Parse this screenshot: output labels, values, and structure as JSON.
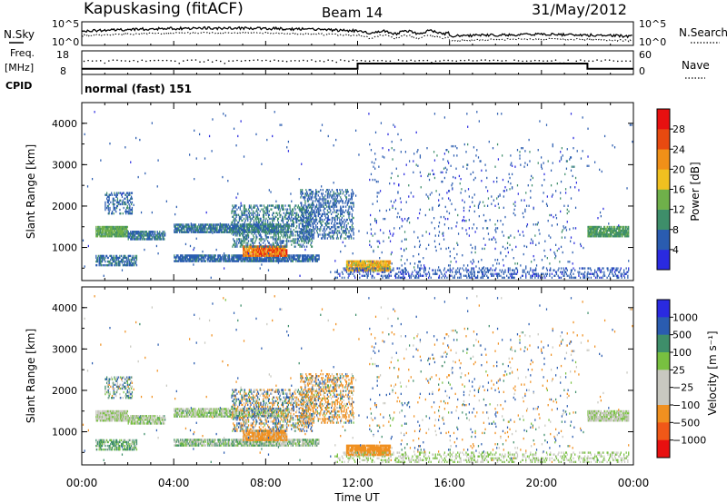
{
  "header": {
    "station": "Kapuskasing (fitACF)",
    "beam": "Beam 14",
    "date": "31/May/2012"
  },
  "top_panels": {
    "nsky_label": "N.Sky",
    "nsky_ticks": [
      "10^5",
      "10^0"
    ],
    "nsearch_label": "N.Search",
    "nsearch_ticks": [
      "10^5",
      "10^0"
    ],
    "freq_label_1": "Freq.",
    "freq_label_2": "[MHz]",
    "freq_ticks": [
      "18",
      "8"
    ],
    "nave_label": "Nave",
    "nave_ticks": [
      "60",
      "0"
    ],
    "cpid_label": "CPID",
    "cpid_text": "normal (fast) 151"
  },
  "colors": {
    "power": [
      "#2a2ae0",
      "#2a5cb0",
      "#3e8e6a",
      "#6fb04a",
      "#f0c020",
      "#f09018",
      "#e84a10",
      "#e81010"
    ],
    "velocity": [
      "#e81010",
      "#f05818",
      "#f09020",
      "#c8c8c0",
      "#c8c8c0",
      "#78c040",
      "#3e8e6a",
      "#2a5cb0",
      "#2a2ae0"
    ]
  },
  "chart_data": [
    {
      "type": "heatmap",
      "title": "Power",
      "ylabel": "Slant Range [km]",
      "xlabel": "Time UT",
      "xticks": [
        "00:00",
        "04:00",
        "08:00",
        "12:00",
        "16:00",
        "20:00",
        "00:00"
      ],
      "xlim": [
        0,
        24
      ],
      "yticks": [
        "1000",
        "2000",
        "3000",
        "4000"
      ],
      "ylim": [
        200,
        4500
      ],
      "colorbar_label": "Power [dB]",
      "colorbar_ticks": [
        "4",
        "8",
        "12",
        "16",
        "20",
        "24",
        "28"
      ],
      "colorbar_range": [
        0,
        32
      ]
    },
    {
      "type": "heatmap",
      "title": "Velocity",
      "ylabel": "Slant Range [km]",
      "xlabel": "Time UT",
      "xticks": [
        "00:00",
        "04:00",
        "08:00",
        "12:00",
        "16:00",
        "20:00",
        "00:00"
      ],
      "xlim": [
        0,
        24
      ],
      "yticks": [
        "1000",
        "2000",
        "3000",
        "4000"
      ],
      "ylim": [
        200,
        4500
      ],
      "colorbar_label": "Velocity [m s⁻¹]",
      "colorbar_ticks": [
        "1000",
        "500",
        "100",
        "25",
        "−25",
        "−100",
        "−500",
        "−1000"
      ]
    },
    {
      "type": "line",
      "title": "Frequency",
      "x": [
        0,
        12,
        12,
        22,
        22,
        24
      ],
      "y": [
        10.4,
        10.4,
        12.6,
        12.6,
        10.4,
        10.4
      ],
      "ylim": [
        8,
        18
      ]
    }
  ],
  "scatter_regions": [
    {
      "t0": 0.6,
      "t1": 2.0,
      "r0": 1250,
      "r1": 1500,
      "p": [
        10,
        16
      ],
      "v": [
        -40,
        20
      ],
      "d": 0.9
    },
    {
      "t0": 1.0,
      "t1": 2.2,
      "r0": 1800,
      "r1": 2300,
      "p": [
        4,
        9
      ],
      "v": [
        -120,
        160
      ],
      "d": 0.35
    },
    {
      "t0": 0.6,
      "t1": 2.4,
      "r0": 550,
      "r1": 800,
      "p": [
        4,
        10
      ],
      "v": [
        -20,
        60
      ],
      "d": 0.55
    },
    {
      "t0": 2.0,
      "t1": 3.6,
      "r0": 1180,
      "r1": 1400,
      "p": [
        5,
        10
      ],
      "v": [
        -30,
        30
      ],
      "d": 0.7
    },
    {
      "t0": 4.0,
      "t1": 9.0,
      "r0": 1350,
      "r1": 1550,
      "p": [
        5,
        10
      ],
      "v": [
        -30,
        30
      ],
      "d": 0.75
    },
    {
      "t0": 4.0,
      "t1": 10.3,
      "r0": 650,
      "r1": 800,
      "p": [
        4,
        9
      ],
      "v": [
        -60,
        60
      ],
      "d": 0.75
    },
    {
      "t0": 7.0,
      "t1": 8.9,
      "r0": 780,
      "r1": 1020,
      "p": [
        18,
        30
      ],
      "v": [
        -300,
        -60
      ],
      "d": 0.9
    },
    {
      "t0": 6.5,
      "t1": 10.0,
      "r0": 1000,
      "r1": 2000,
      "p": [
        5,
        12
      ],
      "v": [
        -250,
        250
      ],
      "d": 0.35
    },
    {
      "t0": 9.5,
      "t1": 11.8,
      "r0": 1200,
      "r1": 2400,
      "p": [
        4,
        9
      ],
      "v": [
        -500,
        200
      ],
      "d": 0.35
    },
    {
      "t0": 11.5,
      "t1": 13.4,
      "r0": 420,
      "r1": 680,
      "p": [
        14,
        24
      ],
      "v": [
        -500,
        -120
      ],
      "d": 0.9
    },
    {
      "t0": 11.0,
      "t1": 23.8,
      "r0": 250,
      "r1": 500,
      "p": [
        3,
        8
      ],
      "v": [
        -25,
        25
      ],
      "d": 0.25
    },
    {
      "t0": 12.5,
      "t1": 21.5,
      "r0": 500,
      "r1": 3500,
      "p": [
        3,
        9
      ],
      "v": [
        -300,
        300
      ],
      "d": 0.03
    },
    {
      "t0": 22.0,
      "t1": 23.8,
      "r0": 1250,
      "r1": 1500,
      "p": [
        8,
        14
      ],
      "v": [
        -40,
        20
      ],
      "d": 0.85
    },
    {
      "t0": 0.0,
      "t1": 24.0,
      "r0": 250,
      "r1": 4300,
      "p": [
        3,
        8
      ],
      "v": [
        -300,
        300
      ],
      "d": 0.004
    }
  ]
}
